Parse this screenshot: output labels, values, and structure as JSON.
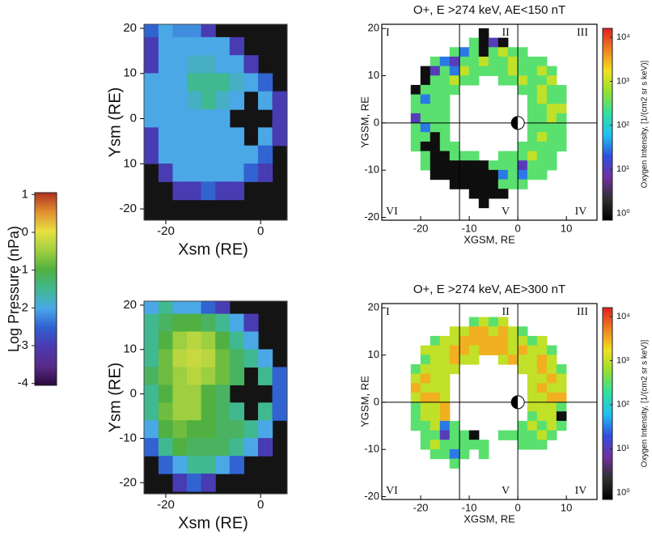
{
  "chart_data": [
    {
      "type": "colorbar",
      "label": "Log Pressure (nPa)",
      "zlim": [
        -4.05,
        1.05
      ],
      "zticks": [
        1,
        0,
        -1,
        -2,
        -3,
        -4
      ],
      "colormap": [
        "#2a0a3a",
        "#5a2a8a",
        "#4a3ab0",
        "#3060d0",
        "#4aa8e8",
        "#40b890",
        "#50b040",
        "#a0d040",
        "#e8e040",
        "#e09030",
        "#b03020"
      ]
    },
    {
      "type": "heatmap",
      "xlabel": "Xsm (RE)",
      "ylabel": "Ysm (RE)",
      "background": "#141414",
      "xlim": [
        -24.6,
        5.6
      ],
      "ylim": [
        -22.5,
        20.9
      ],
      "xticks": [
        -20,
        0
      ],
      "yticks": [
        20,
        10,
        0,
        {
          "value": -10,
          "label": "10"
        },
        -20
      ],
      "x": [
        -23,
        -20,
        -17,
        -14,
        -11,
        -8,
        -5,
        -2,
        1,
        4
      ],
      "y": [
        20,
        16,
        12,
        8,
        4,
        0,
        -4,
        -8,
        -12,
        -16,
        -20
      ],
      "z": [
        [
          -2.5,
          -2,
          -2.2,
          -2.2,
          -3,
          null,
          null,
          null,
          null,
          null
        ],
        [
          -3,
          -2,
          -2,
          -2,
          -2,
          -2,
          -3,
          null,
          null,
          null
        ],
        [
          -3,
          -2,
          -2,
          -1.8,
          -1.8,
          -2,
          -2,
          -3,
          null,
          null
        ],
        [
          -2,
          -2,
          -2,
          -1.5,
          -1.5,
          -1.5,
          -1.8,
          -2,
          -2.5,
          null
        ],
        [
          -2,
          -2,
          -2,
          -1.8,
          -1.5,
          -1.8,
          -2,
          null,
          -2,
          -3
        ],
        [
          -2,
          -2,
          -2,
          -2,
          -2,
          -2,
          null,
          null,
          null,
          -3
        ],
        [
          -3,
          -2,
          -2,
          -2,
          -2,
          -2,
          -2,
          null,
          -2,
          -3
        ],
        [
          -3,
          -2,
          -2,
          -2,
          -2,
          -2,
          -2,
          -2,
          -2.5,
          null
        ],
        [
          null,
          -3,
          -2,
          -2,
          -2,
          -2,
          -2,
          -2.5,
          -3,
          null
        ],
        [
          null,
          null,
          -3,
          -3,
          -2.5,
          -3,
          -3,
          null,
          null,
          null
        ],
        [
          null,
          null,
          null,
          null,
          null,
          null,
          null,
          null,
          null,
          null
        ]
      ]
    },
    {
      "type": "heatmap",
      "xlabel": "Xsm (RE)",
      "ylabel": "Ysm (RE)",
      "background": "#141414",
      "xlim": [
        -24.6,
        5.6
      ],
      "ylim": [
        -22.5,
        20.9
      ],
      "xticks": [
        -20,
        0
      ],
      "yticks": [
        20,
        10,
        0,
        -10,
        -20
      ],
      "x": [
        -23,
        -20,
        -17,
        -14,
        -11,
        -8,
        -5,
        -2,
        1,
        4
      ],
      "y": [
        20,
        16,
        12,
        8,
        4,
        0,
        -4,
        -8,
        -12,
        -16,
        -20
      ],
      "z": [
        [
          -2,
          -1.5,
          -2,
          -2,
          -2.5,
          -3,
          null,
          null,
          null,
          null
        ],
        [
          -1.5,
          -1.2,
          -1,
          -1,
          -1.2,
          -1.5,
          -2,
          -3,
          null,
          null
        ],
        [
          -1.5,
          -1,
          -0.5,
          -0.3,
          -0.5,
          -1,
          -1.5,
          -2,
          null,
          null
        ],
        [
          -1.5,
          -0.8,
          -0.3,
          -0.2,
          -0.3,
          -0.8,
          -1.2,
          -1.5,
          -2,
          null
        ],
        [
          -1.2,
          -0.8,
          -0.5,
          -0.3,
          -0.5,
          -0.8,
          -1.2,
          null,
          -1.5,
          -2.5
        ],
        [
          -1.5,
          -1,
          -0.5,
          -0.5,
          -1,
          -1.2,
          null,
          null,
          null,
          -2.5
        ],
        [
          -1.5,
          -0.8,
          -0.5,
          -0.5,
          -1,
          -1.2,
          -1.5,
          null,
          -1.5,
          -2.5
        ],
        [
          -2,
          -1,
          -0.8,
          -1,
          -1,
          -1.2,
          -1.2,
          -1.5,
          -2,
          null
        ],
        [
          -2.5,
          -1.5,
          -1,
          -1.2,
          -1.2,
          -1.2,
          -1.5,
          -2,
          -3,
          null
        ],
        [
          null,
          -2.5,
          -2,
          -1.5,
          -1.5,
          -2,
          -2.5,
          null,
          null,
          null
        ],
        [
          null,
          null,
          -3,
          -2.5,
          -3,
          null,
          null,
          null,
          null,
          null
        ]
      ]
    },
    {
      "type": "sector-heatmap",
      "title": "O+, E >274 keV, AE<150 nT",
      "xlabel": "XGSM, RE",
      "ylabel": "YGSM, RE",
      "xlim": [
        -28,
        16.3
      ],
      "ylim": [
        -20.6,
        20.9
      ],
      "xticks": [
        -20,
        -10,
        0,
        10
      ],
      "yticks": [
        20,
        10,
        0,
        -10,
        -20
      ],
      "sector_lines": {
        "x": [
          -12,
          0
        ],
        "y": [
          0
        ]
      },
      "sector_labels": [
        "I",
        "II",
        "III",
        "VI",
        "V",
        "IV"
      ],
      "x": [
        -21,
        -19,
        -17,
        -15,
        -13,
        -11,
        -9,
        -7,
        -5,
        -3,
        -1,
        1,
        3,
        5,
        7,
        9
      ],
      "y": [
        19,
        17,
        15,
        13,
        11,
        9,
        7,
        5,
        3,
        1,
        -1,
        -3,
        -5,
        -7,
        -9,
        -11,
        -13,
        -15,
        -17
      ],
      "z": [
        [
          null,
          null,
          null,
          null,
          null,
          null,
          null,
          1,
          null,
          null,
          null,
          null,
          null,
          null,
          null,
          null
        ],
        [
          null,
          null,
          null,
          null,
          null,
          null,
          300,
          1,
          10,
          1,
          null,
          null,
          null,
          null,
          null,
          null
        ],
        [
          null,
          null,
          null,
          null,
          300,
          30,
          300,
          1,
          300,
          1000,
          300,
          300,
          null,
          null,
          null,
          null
        ],
        [
          null,
          null,
          300,
          30,
          10,
          300,
          300,
          1000,
          300,
          300,
          1000,
          300,
          300,
          300,
          null,
          null
        ],
        [
          null,
          1,
          10,
          300,
          30,
          1000,
          300,
          300,
          300,
          300,
          1000,
          300,
          300,
          1000,
          300,
          null
        ],
        [
          null,
          1,
          300,
          300,
          1000,
          300,
          300,
          null,
          null,
          300,
          300,
          1000,
          300,
          300,
          1000,
          null
        ],
        [
          1,
          300,
          300,
          300,
          300,
          null,
          null,
          null,
          null,
          null,
          null,
          300,
          300,
          1000,
          300,
          300
        ],
        [
          300,
          30,
          300,
          300,
          null,
          null,
          null,
          null,
          null,
          null,
          null,
          null,
          300,
          1000,
          300,
          300
        ],
        [
          300,
          300,
          300,
          300,
          null,
          null,
          null,
          null,
          null,
          null,
          null,
          null,
          300,
          300,
          1000,
          1000
        ],
        [
          10,
          300,
          300,
          300,
          null,
          null,
          null,
          null,
          null,
          null,
          null,
          null,
          300,
          300,
          1000,
          300
        ],
        [
          300,
          30,
          300,
          300,
          null,
          null,
          null,
          null,
          null,
          null,
          null,
          null,
          300,
          300,
          300,
          300
        ],
        [
          300,
          300,
          1,
          300,
          null,
          null,
          null,
          null,
          null,
          null,
          null,
          null,
          300,
          1000,
          300,
          300
        ],
        [
          300,
          1,
          1,
          300,
          300,
          null,
          null,
          null,
          null,
          null,
          null,
          300,
          300,
          300,
          300,
          300
        ],
        [
          null,
          300,
          1,
          1,
          300,
          300,
          300,
          null,
          null,
          300,
          300,
          300,
          1000,
          300,
          300,
          null
        ],
        [
          null,
          300,
          1,
          1,
          1,
          1,
          1,
          1,
          300,
          300,
          300,
          10,
          300,
          300,
          300,
          null
        ],
        [
          null,
          null,
          1,
          1,
          1,
          1,
          1,
          1,
          1,
          30,
          300,
          30,
          300,
          300,
          null,
          null
        ],
        [
          null,
          null,
          null,
          null,
          1,
          1,
          1,
          1,
          1,
          300,
          300,
          300,
          null,
          null,
          null,
          null
        ],
        [
          null,
          null,
          null,
          null,
          null,
          null,
          1,
          1,
          1,
          1,
          null,
          null,
          null,
          null,
          null,
          null
        ],
        [
          null,
          null,
          null,
          null,
          null,
          null,
          null,
          1,
          null,
          null,
          null,
          null,
          null,
          null,
          null,
          null
        ]
      ],
      "colorbar": {
        "label": "Oxygen Intensity, [1/(cm2 sr s keV)]",
        "log": true,
        "zlim": [
          0.7,
          16000
        ],
        "zticks": [
          {
            "value": 10000,
            "label": "10⁴"
          },
          {
            "value": 1000,
            "label": "10³"
          },
          {
            "value": 100,
            "label": "10²"
          },
          {
            "value": 10,
            "label": "10¹"
          },
          {
            "value": 1,
            "label": "10⁰"
          }
        ],
        "colormap": [
          "#000000",
          "#303030",
          "#7030a0",
          "#3050e0",
          "#20c0f0",
          "#30e0a0",
          "#90e030",
          "#f0e020",
          "#f08020",
          "#e02020"
        ]
      }
    },
    {
      "type": "sector-heatmap",
      "title": "O+, E >274 keV, AE>300 nT",
      "xlabel": "XGSM, RE",
      "ylabel": "YGSM, RE",
      "xlim": [
        -28,
        16.3
      ],
      "ylim": [
        -20.6,
        20.9
      ],
      "xticks": [
        -20,
        -10,
        0,
        10
      ],
      "yticks": [
        20,
        10,
        0,
        -10,
        -20
      ],
      "sector_lines": {
        "x": [
          -12,
          0
        ],
        "y": [
          0
        ]
      },
      "sector_labels": [
        "I",
        "II",
        "III",
        "VI",
        "V",
        "IV"
      ],
      "x": [
        -21,
        -19,
        -17,
        -15,
        -13,
        -11,
        -9,
        -7,
        -5,
        -3,
        -1,
        1,
        3,
        5,
        7,
        9
      ],
      "y": [
        19,
        17,
        15,
        13,
        11,
        9,
        7,
        5,
        3,
        1,
        -1,
        -3,
        -5,
        -7,
        -9,
        -11,
        -13,
        -15,
        -17
      ],
      "z": [
        [
          null,
          null,
          null,
          null,
          null,
          null,
          null,
          null,
          null,
          null,
          null,
          null,
          null,
          null,
          null,
          null
        ],
        [
          null,
          null,
          null,
          null,
          null,
          null,
          300,
          1000,
          300,
          1000,
          null,
          null,
          null,
          null,
          null,
          null
        ],
        [
          null,
          null,
          null,
          null,
          1000,
          1000,
          3000,
          3000,
          1000,
          3000,
          1000,
          300,
          null,
          null,
          null,
          null
        ],
        [
          null,
          null,
          300,
          1000,
          1000,
          3000,
          3000,
          3000,
          3000,
          3000,
          1000,
          1000,
          300,
          1000,
          null,
          null
        ],
        [
          null,
          1000,
          1000,
          1000,
          3000,
          3000,
          1000,
          3000,
          3000,
          3000,
          1000,
          3000,
          1000,
          1000,
          300,
          null
        ],
        [
          null,
          300,
          1000,
          1000,
          3000,
          1000,
          1000,
          null,
          null,
          1000,
          3000,
          1000,
          1000,
          3000,
          1000,
          null
        ],
        [
          300,
          1000,
          1000,
          1000,
          1000,
          null,
          null,
          null,
          null,
          null,
          null,
          1000,
          1000,
          3000,
          1000,
          300
        ],
        [
          1000,
          3000,
          1000,
          1000,
          null,
          null,
          null,
          null,
          null,
          null,
          null,
          null,
          1000,
          1000,
          3000,
          1000
        ],
        [
          3000,
          1000,
          1000,
          1000,
          null,
          null,
          null,
          null,
          null,
          null,
          null,
          null,
          1000,
          3000,
          1000,
          1000
        ],
        [
          1000,
          3000,
          3000,
          1000,
          null,
          null,
          null,
          null,
          null,
          null,
          null,
          null,
          1000,
          1000,
          3000,
          3000
        ],
        [
          300,
          1000,
          1000,
          3000,
          null,
          null,
          null,
          null,
          null,
          null,
          null,
          null,
          1000,
          1000,
          1000,
          300
        ],
        [
          300,
          1000,
          1000,
          3000,
          null,
          null,
          null,
          null,
          null,
          null,
          null,
          null,
          300,
          1000,
          1000,
          1
        ],
        [
          300,
          300,
          1000,
          30,
          300,
          null,
          null,
          null,
          null,
          null,
          null,
          300,
          1000,
          300,
          1000,
          300
        ],
        [
          null,
          300,
          300,
          10,
          300,
          300,
          1,
          null,
          null,
          300,
          300,
          300,
          300,
          1000,
          300,
          null
        ],
        [
          null,
          300,
          1000,
          300,
          300,
          300,
          300,
          300,
          null,
          null,
          null,
          300,
          300,
          300,
          null,
          null
        ],
        [
          null,
          null,
          300,
          300,
          30,
          300,
          null,
          300,
          null,
          null,
          null,
          null,
          null,
          null,
          null,
          null
        ],
        [
          null,
          null,
          null,
          null,
          300,
          null,
          null,
          null,
          null,
          null,
          null,
          null,
          null,
          null,
          null,
          null
        ],
        [
          null,
          null,
          null,
          null,
          null,
          null,
          null,
          null,
          null,
          null,
          null,
          null,
          null,
          null,
          null,
          null
        ],
        [
          null,
          null,
          null,
          null,
          null,
          null,
          null,
          null,
          null,
          null,
          null,
          null,
          null,
          null,
          null,
          null
        ]
      ],
      "colorbar": {
        "label": "Oxygen Intensity, [1/(cm2 sr s keV)]",
        "log": true,
        "zlim": [
          0.7,
          16000
        ],
        "zticks": [
          {
            "value": 10000,
            "label": "10⁴"
          },
          {
            "value": 1000,
            "label": "10³"
          },
          {
            "value": 100,
            "label": "10²"
          },
          {
            "value": 10,
            "label": "10¹"
          },
          {
            "value": 1,
            "label": "10⁰"
          }
        ],
        "colormap": [
          "#000000",
          "#303030",
          "#7030a0",
          "#3050e0",
          "#20c0f0",
          "#30e0a0",
          "#90e030",
          "#f0e020",
          "#f08020",
          "#e02020"
        ]
      }
    }
  ]
}
